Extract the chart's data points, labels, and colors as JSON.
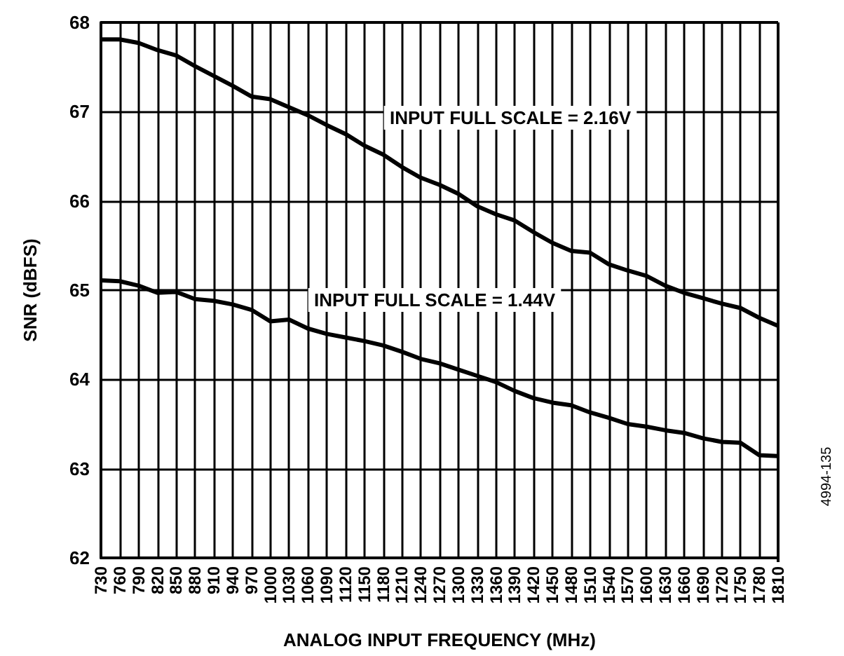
{
  "chart_data": {
    "type": "line",
    "xlabel": "ANALOG INPUT FREQUENCY (MHz)",
    "ylabel": "SNR (dBFS)",
    "categories": [
      "730",
      "760",
      "790",
      "820",
      "850",
      "880",
      "910",
      "940",
      "970",
      "1000",
      "1030",
      "1060",
      "1090",
      "1120",
      "1150",
      "1180",
      "1210",
      "1240",
      "1270",
      "1300",
      "1330",
      "1360",
      "1390",
      "1420",
      "1450",
      "1480",
      "1510",
      "1540",
      "1570",
      "1600",
      "1630",
      "1660",
      "1690",
      "1720",
      "1750",
      "1780",
      "1810"
    ],
    "series": [
      {
        "color": "#000000",
        "values": [
          67.81,
          67.81,
          67.77,
          67.69,
          67.63,
          67.51,
          67.4,
          67.29,
          67.17,
          67.14,
          67.05,
          66.96,
          66.85,
          66.75,
          66.62,
          66.52,
          66.38,
          66.26,
          66.18,
          66.08,
          65.94,
          65.85,
          65.78,
          65.65,
          65.53,
          65.44,
          65.42,
          65.29,
          65.22,
          65.16,
          65.05,
          64.97,
          64.91,
          64.85,
          64.8,
          64.69,
          64.6
        ]
      },
      {
        "color": "#000000",
        "values": [
          65.11,
          65.1,
          65.05,
          64.97,
          64.98,
          64.9,
          64.88,
          64.84,
          64.78,
          64.65,
          64.67,
          64.57,
          64.51,
          64.47,
          64.43,
          64.38,
          64.31,
          64.23,
          64.18,
          64.11,
          64.04,
          63.97,
          63.87,
          63.79,
          63.74,
          63.71,
          63.63,
          63.57,
          63.5,
          63.47,
          63.43,
          63.4,
          63.34,
          63.3,
          63.29,
          63.15,
          63.14
        ]
      }
    ],
    "ylim": [
      62,
      68
    ],
    "yticks": [
      62,
      63,
      64,
      65,
      66,
      67,
      68
    ],
    "grid": true,
    "marker": "none",
    "line_style": "solid",
    "annotations": [
      "INPUT FULL SCALE = 2.16V",
      "INPUT FULL SCALE = 1.44V",
      "4994-135"
    ]
  }
}
